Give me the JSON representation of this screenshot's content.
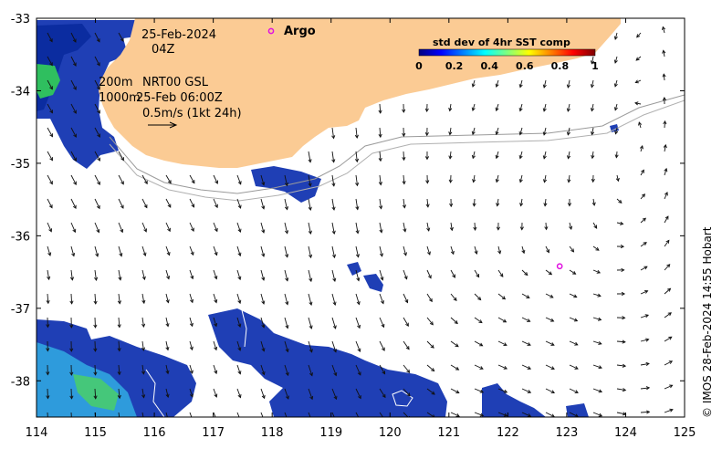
{
  "map": {
    "lon_range": [
      114,
      125
    ],
    "lat_range": [
      -38.5,
      -33
    ],
    "lon_ticks": [
      114,
      115,
      116,
      117,
      118,
      119,
      120,
      121,
      122,
      123,
      124,
      125
    ],
    "lat_ticks": [
      -33,
      -34,
      -35,
      -36,
      -37,
      -38
    ],
    "land_color": "#fbcb94",
    "grid": false
  },
  "annotation": {
    "date": "25-Feb-2024",
    "hour": "04Z",
    "depth_200": "200m",
    "source": "NRT00 GSL",
    "depth_1000": "1000m",
    "vector_time": "25-Feb 06:00Z",
    "scale_label": "0.5m/s (1kt 24h)"
  },
  "argo": {
    "label": "Argo",
    "marker_color": "#e010e0",
    "floats": [
      {
        "lon": 122.88,
        "lat": -36.42
      }
    ]
  },
  "colorbar": {
    "title": "std dev of 4hr SST comp",
    "ticks": [
      "0",
      "0.2",
      "0.4",
      "0.6",
      "0.8",
      "1"
    ],
    "colors": [
      "#00007f",
      "#0000ff",
      "#007fff",
      "#00ffff",
      "#7fff7f",
      "#ffff00",
      "#ff7f00",
      "#ff0000",
      "#7f0000"
    ]
  },
  "credit": "© IMOS 28-Feb-2024 14:55 Hobart",
  "icons": {
    "argo_marker": "circle-outline",
    "current_vector": "arrow"
  }
}
